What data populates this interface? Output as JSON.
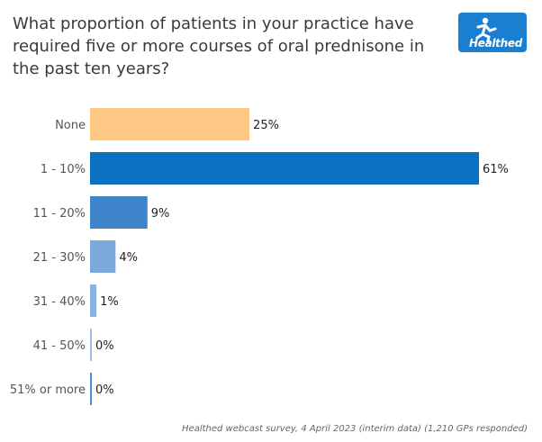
{
  "title": "What proportion of patients in your practice have required five or more courses of oral prednisone in the past ten years?",
  "logo_text": "Healthed",
  "logo_color": "#1a7fd1",
  "source": "Healthed webcast survey, 4 April 2023 (interim data) (1,210 GPs responded)",
  "chart_data": {
    "type": "bar",
    "orientation": "horizontal",
    "title": "What proportion of patients in your practice have required five or more courses of oral prednisone in the past ten years?",
    "xlabel": "",
    "ylabel": "",
    "xlim": [
      0,
      61
    ],
    "grid": false,
    "categories": [
      "None",
      "1 - 10%",
      "11 - 20%",
      "21 - 30%",
      "31 - 40%",
      "41 - 50%",
      "51% or more"
    ],
    "values": [
      25,
      61,
      9,
      4,
      1,
      0,
      0
    ],
    "value_labels": [
      "25%",
      "61%",
      "9%",
      "4%",
      "1%",
      "0%",
      "0%"
    ],
    "colors": [
      "#fdc883",
      "#0b72c1",
      "#3e84cb",
      "#7aa9dc",
      "#8ab2df",
      "#9bbde4",
      "#4a90d9"
    ]
  }
}
